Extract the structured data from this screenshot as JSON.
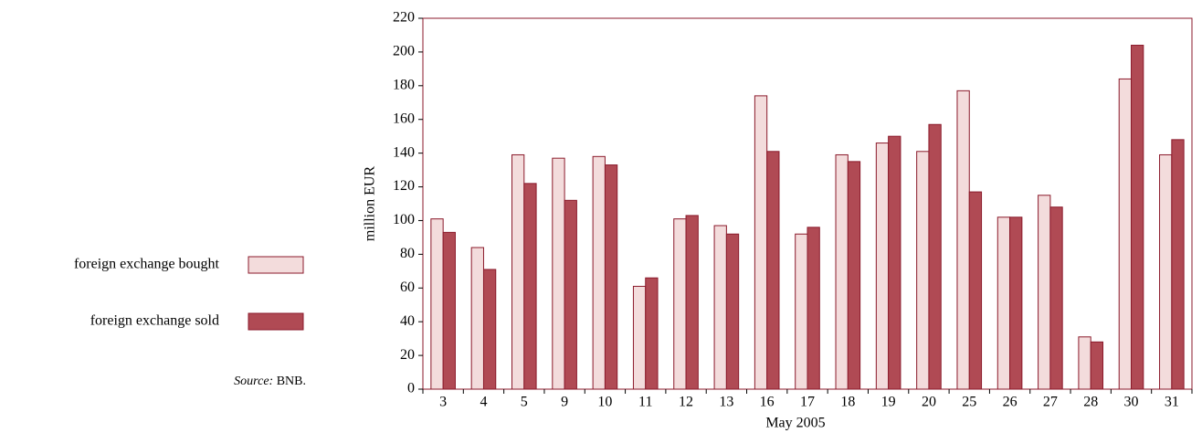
{
  "chart_data": {
    "type": "bar",
    "x_label": "May 2005",
    "y_label": "million EUR",
    "categories": [
      "3",
      "4",
      "5",
      "9",
      "10",
      "11",
      "12",
      "13",
      "16",
      "17",
      "18",
      "19",
      "20",
      "25",
      "26",
      "27",
      "28",
      "30",
      "31"
    ],
    "series": [
      {
        "name": "foreign exchange bought",
        "color": "#f3dcdc",
        "values": [
          101,
          84,
          139,
          137,
          138,
          61,
          101,
          97,
          174,
          92,
          139,
          146,
          141,
          177,
          102,
          115,
          31,
          184,
          139
        ]
      },
      {
        "name": "foreign exchange sold",
        "color": "#b04a54",
        "values": [
          93,
          71,
          122,
          112,
          133,
          66,
          103,
          92,
          141,
          96,
          135,
          150,
          157,
          117,
          102,
          108,
          28,
          204,
          148
        ]
      }
    ],
    "ylim": [
      0,
      220
    ],
    "yticks": [
      0,
      20,
      40,
      60,
      80,
      100,
      120,
      140,
      160,
      180,
      200,
      220
    ],
    "source": {
      "label": "Source:",
      "text": "BNB."
    }
  }
}
